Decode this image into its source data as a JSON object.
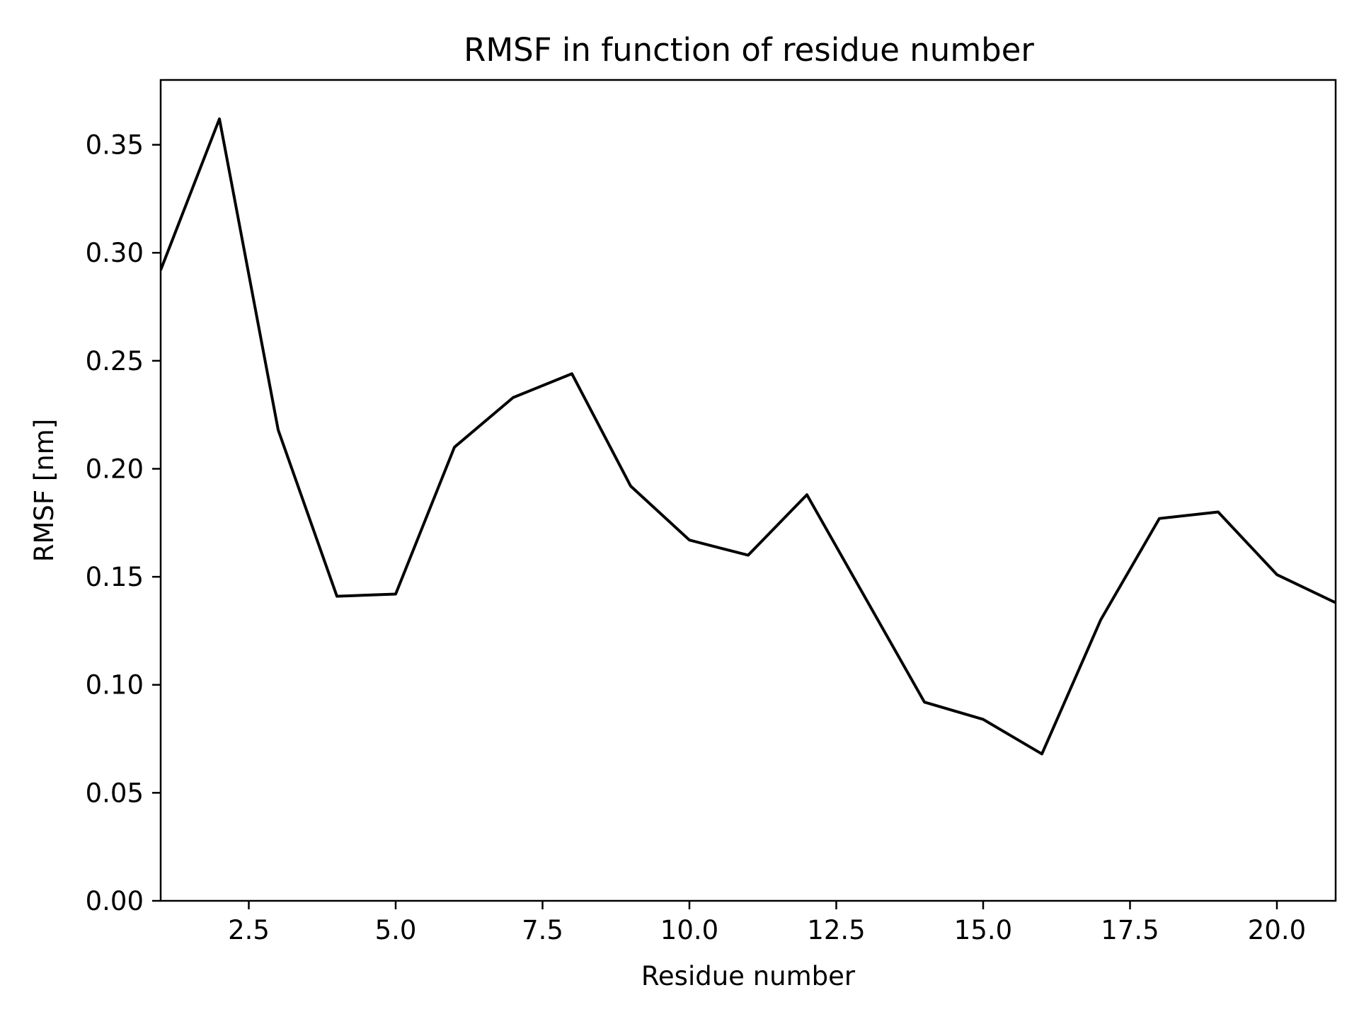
{
  "chart_data": {
    "type": "line",
    "title": "RMSF in function of residue number",
    "xlabel": "Residue number",
    "ylabel": "RMSF [nm]",
    "xlim": [
      1,
      21
    ],
    "ylim": [
      0,
      0.38
    ],
    "xticks": [
      2.5,
      5.0,
      7.5,
      10.0,
      12.5,
      15.0,
      17.5,
      20.0
    ],
    "xtick_labels": [
      "2.5",
      "5.0",
      "7.5",
      "10.0",
      "12.5",
      "15.0",
      "17.5",
      "20.0"
    ],
    "yticks": [
      0.0,
      0.05,
      0.1,
      0.15,
      0.2,
      0.25,
      0.3,
      0.35
    ],
    "ytick_labels": [
      "0.00",
      "0.05",
      "0.10",
      "0.15",
      "0.20",
      "0.25",
      "0.30",
      "0.35"
    ],
    "grid": false,
    "line_color": "#000000",
    "series": [
      {
        "x": [
          1,
          2,
          3,
          4,
          5,
          6,
          7,
          8,
          9,
          10,
          11,
          12,
          13,
          14,
          15,
          16,
          17,
          18,
          19,
          20,
          21
        ],
        "values": [
          0.292,
          0.362,
          0.218,
          0.141,
          0.142,
          0.21,
          0.233,
          0.244,
          0.192,
          0.167,
          0.16,
          0.188,
          0.14,
          0.092,
          0.084,
          0.068,
          0.13,
          0.177,
          0.18,
          0.151,
          0.138
        ]
      }
    ]
  }
}
